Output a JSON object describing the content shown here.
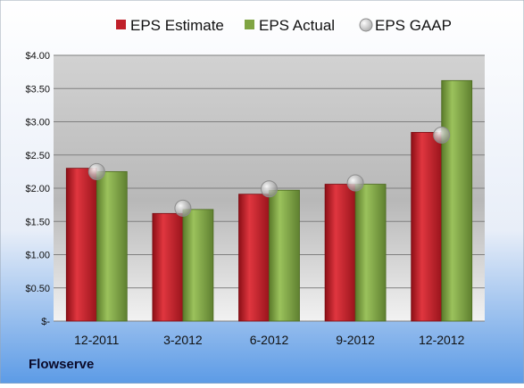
{
  "company": "Flowserve",
  "chart_data": {
    "type": "bar",
    "categories": [
      "12-2011",
      "3-2012",
      "6-2012",
      "9-2012",
      "12-2012"
    ],
    "series": [
      {
        "name": "EPS Estimate",
        "values": [
          2.3,
          1.62,
          1.91,
          2.06,
          2.84
        ],
        "color": "#c0202a"
      },
      {
        "name": "EPS Actual",
        "values": [
          2.25,
          1.68,
          1.97,
          2.06,
          3.62
        ],
        "color": "#7fa442"
      }
    ],
    "markers": {
      "name": "EPS GAAP",
      "values": [
        2.25,
        1.7,
        1.99,
        2.08,
        2.8
      ],
      "color": "#b4b4b4"
    },
    "yticks": [
      "$-",
      "$0.50",
      "$1.00",
      "$1.50",
      "$2.00",
      "$2.50",
      "$3.00",
      "$3.50",
      "$4.00"
    ],
    "ylim": [
      0,
      4
    ],
    "grid": true,
    "legend_position": "top",
    "colors": {
      "background_top": "#ffffff",
      "background_bottom": "#5c9be6",
      "plot_top": "#d2d2d2",
      "plot_bottom": "#f2f2f2",
      "gridline": "#808080"
    }
  }
}
